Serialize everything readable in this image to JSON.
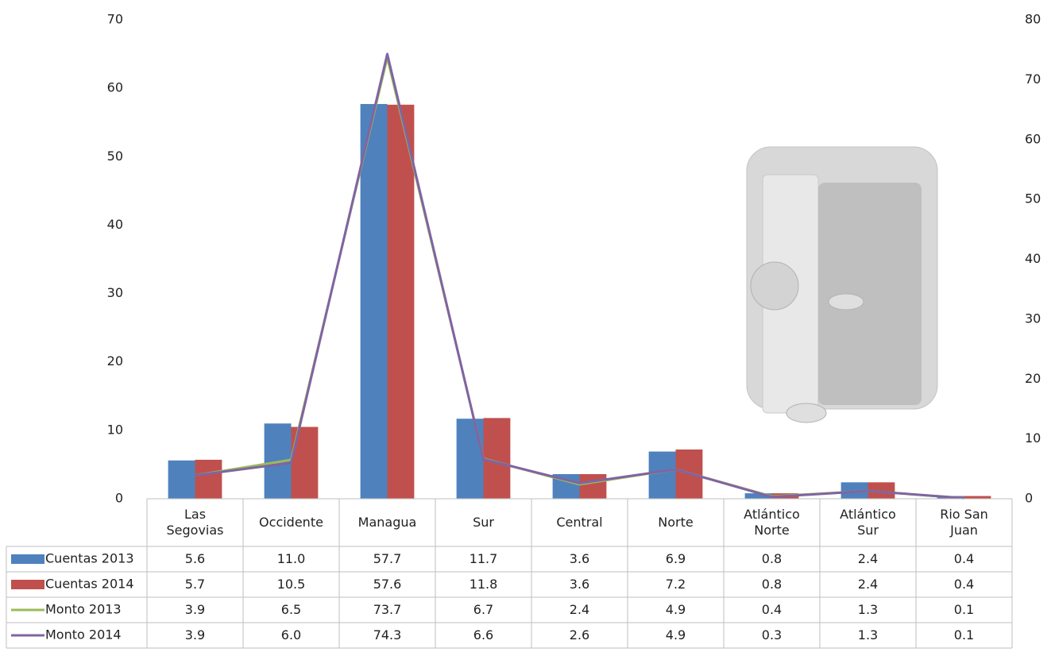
{
  "chart_data": {
    "type": "bar",
    "categories": [
      "Las Segovias",
      "Occidente",
      "Managua",
      "Sur",
      "Central",
      "Norte",
      "Atlántico Norte",
      "Atlántico Sur",
      "Rio San Juan"
    ],
    "series": [
      {
        "name": "Cuentas 2013",
        "type": "bar",
        "color": "#4f81bd",
        "values": [
          5.6,
          11.0,
          57.7,
          11.7,
          3.6,
          6.9,
          0.8,
          2.4,
          0.4
        ],
        "value_labels": [
          "5.6",
          "11.0",
          "57.7",
          "11.7",
          "3.6",
          "6.9",
          "0.8",
          "2.4",
          "0.4"
        ]
      },
      {
        "name": "Cuentas 2014",
        "type": "bar",
        "color": "#c0504d",
        "values": [
          5.7,
          10.5,
          57.6,
          11.8,
          3.6,
          7.2,
          0.8,
          2.4,
          0.4
        ],
        "value_labels": [
          "5.7",
          "10.5",
          "57.6",
          "11.8",
          "3.6",
          "7.2",
          "0.8",
          "2.4",
          "0.4"
        ]
      },
      {
        "name": "Monto 2013",
        "type": "line",
        "axis": "y2",
        "color": "#9bbb59",
        "values": [
          3.9,
          6.5,
          73.7,
          6.7,
          2.4,
          4.9,
          0.4,
          1.3,
          0.1
        ],
        "value_labels": [
          "3.9",
          "6.5",
          "73.7",
          "6.7",
          "2.4",
          "4.9",
          "0.4",
          "1.3",
          "0.1"
        ]
      },
      {
        "name": "Monto 2014",
        "type": "line",
        "axis": "y2",
        "color": "#8064a2",
        "values": [
          3.9,
          6.0,
          74.3,
          6.6,
          2.6,
          4.9,
          0.3,
          1.3,
          0.1
        ],
        "value_labels": [
          "3.9",
          "6.0",
          "74.3",
          "6.6",
          "2.6",
          "4.9",
          "0.3",
          "1.3",
          "0.1"
        ]
      }
    ],
    "ylim": [
      0,
      70
    ],
    "yticks": [
      0,
      10,
      20,
      30,
      40,
      50,
      60,
      70
    ],
    "y2lim": [
      0,
      80
    ],
    "y2ticks": [
      0,
      10,
      20,
      30,
      40,
      50,
      60,
      70,
      80
    ],
    "grid": false,
    "data_table": true
  }
}
